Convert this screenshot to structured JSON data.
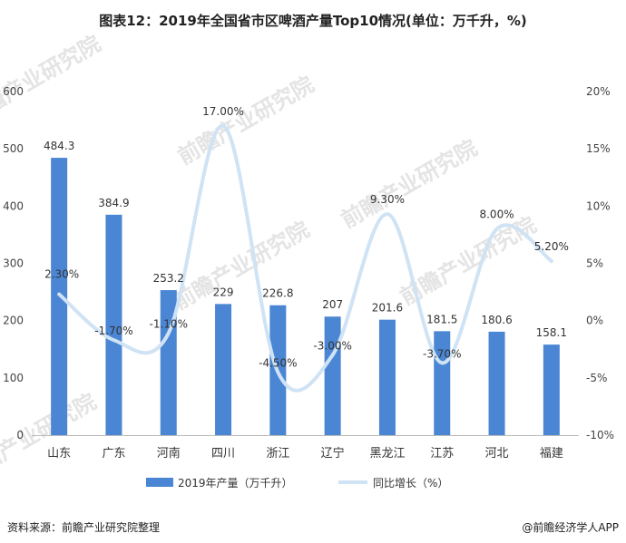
{
  "title": "图表12：2019年全国省市区啤酒产量Top10情况(单位：万千升，%)",
  "footer": {
    "source": "资料来源：前瞻产业研究院整理",
    "brand": "@前瞻经济学人APP"
  },
  "watermark": "前瞻产业研究院",
  "colors": {
    "bar": "#4a86d4",
    "line": "#cfe3f4",
    "axis": "#bbbbbb"
  },
  "chart_data": {
    "type": "bar",
    "categories": [
      "山东",
      "广东",
      "河南",
      "四川",
      "浙江",
      "辽宁",
      "黑龙江",
      "江苏",
      "河北",
      "福建"
    ],
    "series": [
      {
        "name": "2019年产量（万千升）",
        "type": "bar",
        "axis": "left",
        "values": [
          484.3,
          384.9,
          253.2,
          229,
          226.8,
          207,
          201.6,
          181.5,
          180.6,
          158.1
        ],
        "labels": [
          "484.3",
          "384.9",
          "253.2",
          "229",
          "226.8",
          "207",
          "201.6",
          "181.5",
          "180.6",
          "158.1"
        ]
      },
      {
        "name": "同比增长（%）",
        "type": "line",
        "axis": "right",
        "smooth": true,
        "values": [
          2.3,
          -1.7,
          -1.1,
          17.0,
          -4.5,
          -3.0,
          9.3,
          -3.7,
          8.0,
          5.2
        ],
        "labels": [
          "2.30%",
          "-1.70%",
          "-1.10%",
          "17.00%",
          "-4.50%",
          "-3.00%",
          "9.30%",
          "-3.70%",
          "8.00%",
          "5.20%"
        ]
      }
    ],
    "yleft": {
      "lim": [
        0,
        600
      ],
      "ticks": [
        "0",
        "100",
        "200",
        "300",
        "400",
        "500",
        "600"
      ]
    },
    "yright": {
      "lim": [
        -10,
        20
      ],
      "ticks": [
        "-10%",
        "-5%",
        "0%",
        "5%",
        "10%",
        "15%",
        "20%"
      ]
    },
    "legend_position": "bottom",
    "grid": false
  }
}
